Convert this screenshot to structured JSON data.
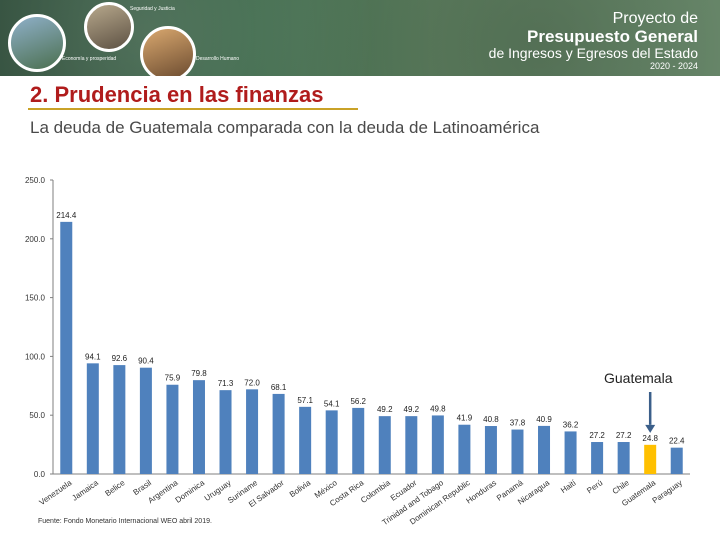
{
  "banner": {
    "label_economy": "Economía y prosperidad",
    "label_security": "Seguridad y Justicia",
    "label_development": "Desarrollo Humano",
    "project_line1": "Proyecto de",
    "project_line2": "Presupuesto General",
    "project_line3": "de Ingresos y Egresos del Estado",
    "project_years": "2020 - 2024"
  },
  "slide": {
    "heading": "2. Prudencia en las finanzas",
    "subtitle": "La deuda de Guatemala comparada con la deuda de Latinoamérica",
    "source": "Fuente: Fondo Monetario Internacional WEO abril 2019."
  },
  "colors": {
    "bar": "#4f81bd",
    "highlight": "#ffc000",
    "heading": "#b01c1c"
  },
  "chart_data": {
    "type": "bar",
    "title": "",
    "xlabel": "",
    "ylabel": "",
    "ylim": [
      0,
      250
    ],
    "yticks": [
      "0.0",
      "50.0",
      "100.0",
      "150.0",
      "200.0",
      "250.0"
    ],
    "grid": false,
    "categories": [
      "Venezuela",
      "Jamaica",
      "Belice",
      "Brasil",
      "Argentina",
      "Dominica",
      "Uruguay",
      "Suriname",
      "El Salvador",
      "Bolivia",
      "México",
      "Costa Rica",
      "Colombia",
      "Ecuador",
      "Trinidad and Tobago",
      "Dominican Republic",
      "Honduras",
      "Panamá",
      "Nicaragua",
      "Haití",
      "Perú",
      "Chile",
      "Guatemala",
      "Paraguay"
    ],
    "values": [
      214.4,
      94.1,
      92.6,
      90.4,
      75.9,
      79.8,
      71.3,
      72.0,
      68.1,
      57.1,
      54.1,
      56.2,
      49.2,
      49.2,
      49.8,
      41.9,
      40.8,
      37.8,
      40.9,
      36.2,
      27.2,
      27.2,
      24.8,
      22.4
    ],
    "value_labels": [
      "214.4",
      "94.1",
      "92.6",
      "90.4",
      "75.9",
      "79.8",
      "71.3",
      "72.0",
      "68.1",
      "57.1",
      "54.1",
      "56.2",
      "49.2",
      "49.2",
      "49.8",
      "41.9",
      "40.8",
      "37.8",
      "40.9",
      "36.2",
      "27.2",
      "27.2",
      "24.8",
      "22.4"
    ],
    "highlight_category": "Guatemala",
    "annotation": "Guatemala"
  }
}
